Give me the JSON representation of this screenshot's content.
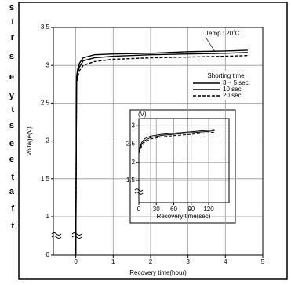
{
  "side_text": [
    "s",
    "t",
    "r",
    "s",
    "e",
    "y",
    "t",
    "s",
    "e",
    "e",
    "t",
    "a",
    "f",
    "t"
  ],
  "chart_data": [
    {
      "type": "line",
      "annotation": "Temp : 20˚C",
      "legend_title": "Shorting time",
      "xlabel": "Recovery time(hour)",
      "ylabel": "Voltage(V)",
      "x": [
        0,
        0.02,
        0.05,
        0.1,
        0.2,
        0.5,
        1,
        2,
        3,
        4,
        4.6
      ],
      "series": [
        {
          "name": "3 ~ 5 sec.",
          "color": "#000000",
          "dash": "solid",
          "values": [
            0,
            2.85,
            2.95,
            3.03,
            3.1,
            3.14,
            3.15,
            3.16,
            3.18,
            3.19,
            3.2
          ]
        },
        {
          "name": "10 sec.",
          "color": "#000000",
          "dash": "solid",
          "values": [
            0,
            2.8,
            2.9,
            2.98,
            3.06,
            3.1,
            3.12,
            3.14,
            3.15,
            3.16,
            3.17
          ]
        },
        {
          "name": "20 sec.",
          "color": "#000000",
          "dash": "dashed",
          "values": [
            0,
            2.75,
            2.85,
            2.93,
            3.0,
            3.05,
            3.08,
            3.1,
            3.11,
            3.12,
            3.13
          ]
        }
      ],
      "xlim": [
        -0.6,
        5
      ],
      "xticks": [
        0,
        1,
        2,
        3,
        4,
        5
      ],
      "ylim": [
        0,
        3.5
      ],
      "yticks": [
        0,
        1.0,
        1.5,
        2.0,
        2.5,
        3.0,
        3.5
      ],
      "grid": true
    },
    {
      "type": "line",
      "xlabel": "Recovery time(sec)",
      "ylabel": "(V)",
      "x": [
        0,
        5,
        10,
        20,
        40,
        60,
        90,
        120,
        130
      ],
      "series": [
        {
          "color": "#000000",
          "dash": "solid",
          "values": [
            2.35,
            2.55,
            2.65,
            2.72,
            2.77,
            2.8,
            2.84,
            2.88,
            2.9
          ]
        },
        {
          "color": "#000000",
          "dash": "solid",
          "values": [
            2.3,
            2.5,
            2.6,
            2.68,
            2.74,
            2.77,
            2.81,
            2.85,
            2.87
          ]
        },
        {
          "color": "#000000",
          "dash": "dashed",
          "values": [
            2.25,
            2.45,
            2.55,
            2.64,
            2.7,
            2.73,
            2.77,
            2.81,
            2.83
          ]
        }
      ],
      "xlim": [
        0,
        155
      ],
      "xticks": [
        0,
        30,
        60,
        90,
        120
      ],
      "ylim": [
        1.5,
        3.2
      ],
      "yticks": [
        1.5,
        2.0,
        2.5,
        3.0
      ],
      "grid": true
    }
  ]
}
